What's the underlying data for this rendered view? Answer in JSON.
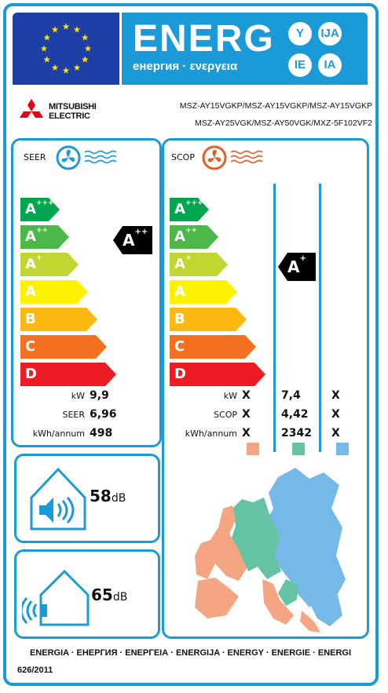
{
  "header": {
    "title": "ENERG",
    "subtitle": "енергия · ενεργεια",
    "lang_badges": [
      "Y",
      "IJA",
      "IE",
      "IA"
    ]
  },
  "brand": {
    "line1": "MITSUBISHI",
    "line2": "ELECTRIC"
  },
  "models": {
    "line1": "MSZ-AY15VGKP/MSZ-AY15VGKP/MSZ-AY15VGKP",
    "line2": "MSZ-AY25VGK/MSZ-AY50VGK/MXZ-5F102VF2"
  },
  "seer": {
    "label": "SEER",
    "classes": [
      {
        "base": "A",
        "sup": "+++",
        "color": "#00a54f"
      },
      {
        "base": "A",
        "sup": "++",
        "color": "#4cb848"
      },
      {
        "base": "A",
        "sup": "+",
        "color": "#bfd730"
      },
      {
        "base": "A",
        "sup": "",
        "color": "#fff200"
      },
      {
        "base": "B",
        "sup": "",
        "color": "#fdb913"
      },
      {
        "base": "C",
        "sup": "",
        "color": "#f37021"
      },
      {
        "base": "D",
        "sup": "",
        "color": "#ed1c24"
      }
    ],
    "rating": {
      "base": "A",
      "sup": "++"
    },
    "rows": [
      {
        "label": "kW",
        "value": "9,9"
      },
      {
        "label": "SEER",
        "value": "6,96"
      },
      {
        "label": "kWh/annum",
        "value": "498"
      }
    ]
  },
  "scop": {
    "label": "SCOP",
    "classes": [
      {
        "base": "A",
        "sup": "+++",
        "color": "#00a54f"
      },
      {
        "base": "A",
        "sup": "++",
        "color": "#4cb848"
      },
      {
        "base": "A",
        "sup": "+",
        "color": "#bfd730"
      },
      {
        "base": "A",
        "sup": "",
        "color": "#fff200"
      },
      {
        "base": "B",
        "sup": "",
        "color": "#fdb913"
      },
      {
        "base": "C",
        "sup": "",
        "color": "#f37021"
      },
      {
        "base": "D",
        "sup": "",
        "color": "#ed1c24"
      }
    ],
    "rating": {
      "base": "A",
      "sup": "+"
    },
    "rows": [
      {
        "label": "kW",
        "warm": "X",
        "average": "7,4",
        "cold": "X"
      },
      {
        "label": "SCOP",
        "warm": "X",
        "average": "4,42",
        "cold": "X"
      },
      {
        "label": "kWh/annum",
        "warm": "X",
        "average": "2342",
        "cold": "X"
      }
    ],
    "zone_colors": {
      "warm": "#f4a582",
      "average": "#66c2a4",
      "cold": "#74b9e8"
    }
  },
  "noise": {
    "indoor": {
      "value": "58",
      "unit": "dB"
    },
    "outdoor": {
      "value": "65",
      "unit": "dB"
    }
  },
  "footer": {
    "languages": "ENERGIA · ЕНЕРГИЯ · ΕΝΕΡΓΕΙΑ · ENERGIJA · ENERGY · ENERGIE · ENERGI",
    "regulation": "626/2011"
  }
}
